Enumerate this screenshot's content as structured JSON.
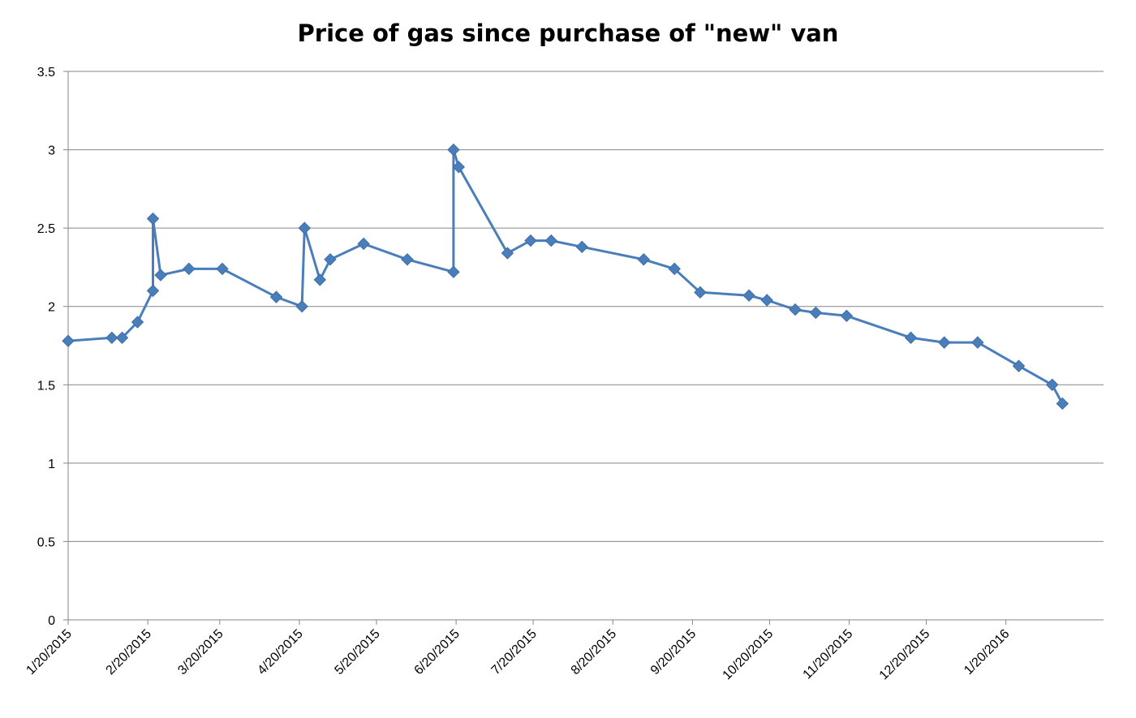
{
  "chart_data": {
    "type": "line",
    "title": "Price of gas since purchase of \"new\" van",
    "xlabel": "",
    "ylabel": "",
    "ylim": [
      0,
      3.5
    ],
    "yticks": [
      "0",
      "0.5",
      "1",
      "1.5",
      "2",
      "2.5",
      "3",
      "3.5"
    ],
    "xlim": [
      "2015-01-20",
      "2016-02-27"
    ],
    "xticks": [
      {
        "label": "1/20/2015",
        "date": "2015-01-20"
      },
      {
        "label": "2/20/2015",
        "date": "2015-02-20"
      },
      {
        "label": "3/20/2015",
        "date": "2015-03-20"
      },
      {
        "label": "4/20/2015",
        "date": "2015-04-20"
      },
      {
        "label": "5/20/2015",
        "date": "2015-05-20"
      },
      {
        "label": "6/20/2015",
        "date": "2015-06-20"
      },
      {
        "label": "7/20/2015",
        "date": "2015-07-20"
      },
      {
        "label": "8/20/2015",
        "date": "2015-08-20"
      },
      {
        "label": "9/20/2015",
        "date": "2015-09-20"
      },
      {
        "label": "10/20/2015",
        "date": "2015-10-20"
      },
      {
        "label": "11/20/2015",
        "date": "2015-11-20"
      },
      {
        "label": "12/20/2015",
        "date": "2015-12-20"
      },
      {
        "label": "1/20/2016",
        "date": "2016-01-20"
      }
    ],
    "grid": "horizontal",
    "legend": "none",
    "color": "#4a7ebb",
    "marker": "diamond",
    "series": [
      {
        "points": [
          {
            "x": "2015-01-20",
            "y": 1.78
          },
          {
            "x": "2015-02-06",
            "y": 1.8
          },
          {
            "x": "2015-02-10",
            "y": 1.8
          },
          {
            "x": "2015-02-16",
            "y": 1.9
          },
          {
            "x": "2015-02-22",
            "y": 2.1
          },
          {
            "x": "2015-02-22",
            "y": 2.56
          },
          {
            "x": "2015-02-25",
            "y": 2.2
          },
          {
            "x": "2015-03-08",
            "y": 2.24
          },
          {
            "x": "2015-03-21",
            "y": 2.24
          },
          {
            "x": "2015-04-11",
            "y": 2.06
          },
          {
            "x": "2015-04-21",
            "y": 2.0
          },
          {
            "x": "2015-04-22",
            "y": 2.5
          },
          {
            "x": "2015-04-28",
            "y": 2.17
          },
          {
            "x": "2015-05-02",
            "y": 2.3
          },
          {
            "x": "2015-05-15",
            "y": 2.4
          },
          {
            "x": "2015-06-01",
            "y": 2.3
          },
          {
            "x": "2015-06-19",
            "y": 2.22
          },
          {
            "x": "2015-06-19",
            "y": 3.0
          },
          {
            "x": "2015-06-21",
            "y": 2.89
          },
          {
            "x": "2015-07-10",
            "y": 2.34
          },
          {
            "x": "2015-07-19",
            "y": 2.42
          },
          {
            "x": "2015-07-27",
            "y": 2.42
          },
          {
            "x": "2015-08-08",
            "y": 2.38
          },
          {
            "x": "2015-09-01",
            "y": 2.3
          },
          {
            "x": "2015-09-13",
            "y": 2.24
          },
          {
            "x": "2015-09-23",
            "y": 2.09
          },
          {
            "x": "2015-10-12",
            "y": 2.07
          },
          {
            "x": "2015-10-19",
            "y": 2.04
          },
          {
            "x": "2015-10-30",
            "y": 1.98
          },
          {
            "x": "2015-11-07",
            "y": 1.96
          },
          {
            "x": "2015-11-19",
            "y": 1.94
          },
          {
            "x": "2015-12-14",
            "y": 1.8
          },
          {
            "x": "2015-12-27",
            "y": 1.77
          },
          {
            "x": "2016-01-09",
            "y": 1.77
          },
          {
            "x": "2016-01-25",
            "y": 1.62
          },
          {
            "x": "2016-02-07",
            "y": 1.5
          },
          {
            "x": "2016-02-11",
            "y": 1.38
          }
        ]
      }
    ]
  }
}
